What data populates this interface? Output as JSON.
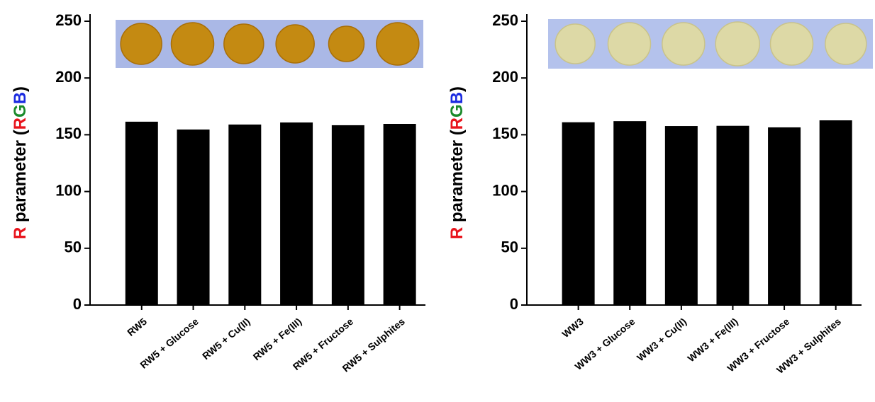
{
  "chart_data": [
    {
      "type": "bar",
      "y_label": [
        {
          "text": "R",
          "color": "#e8141c"
        },
        {
          "text": " parameter (",
          "color": "#000000"
        },
        {
          "text": "R",
          "color": "#e8141c"
        },
        {
          "text": "G",
          "color": "#1a8a2a"
        },
        {
          "text": "B",
          "color": "#1a2ae0"
        },
        {
          "text": ")",
          "color": "#000000"
        }
      ],
      "categories": [
        "RW5",
        "RW5 + Glucose",
        "RW5 + Cu(II)",
        "RW5 + Fe(III)",
        "RW5 + Fructose",
        "RW5 + Sulphites"
      ],
      "values": [
        161.5,
        154.6,
        159,
        160.8,
        158.4,
        159.6
      ],
      "color": "#000000",
      "ylim": [
        0,
        250
      ],
      "yticks": [
        0,
        50,
        100,
        150,
        200,
        250
      ]
    },
    {
      "type": "bar",
      "y_label": [
        {
          "text": "R",
          "color": "#e8141c"
        },
        {
          "text": " parameter (",
          "color": "#000000"
        },
        {
          "text": "R",
          "color": "#e8141c"
        },
        {
          "text": "G",
          "color": "#1a8a2a"
        },
        {
          "text": "B",
          "color": "#1a2ae0"
        },
        {
          "text": ")",
          "color": "#000000"
        }
      ],
      "categories": [
        "WW3",
        "WW3 + Glucose",
        "WW3 + Cu(II)",
        "WW3 + Fe(III)",
        "WW3 + Fructose",
        "WW3 + Sulphites"
      ],
      "values": [
        161,
        162,
        157.7,
        157.9,
        156.5,
        162.7
      ],
      "color": "#000000",
      "ylim": [
        0,
        250
      ],
      "yticks": [
        0,
        50,
        100,
        150,
        200,
        250
      ]
    }
  ]
}
